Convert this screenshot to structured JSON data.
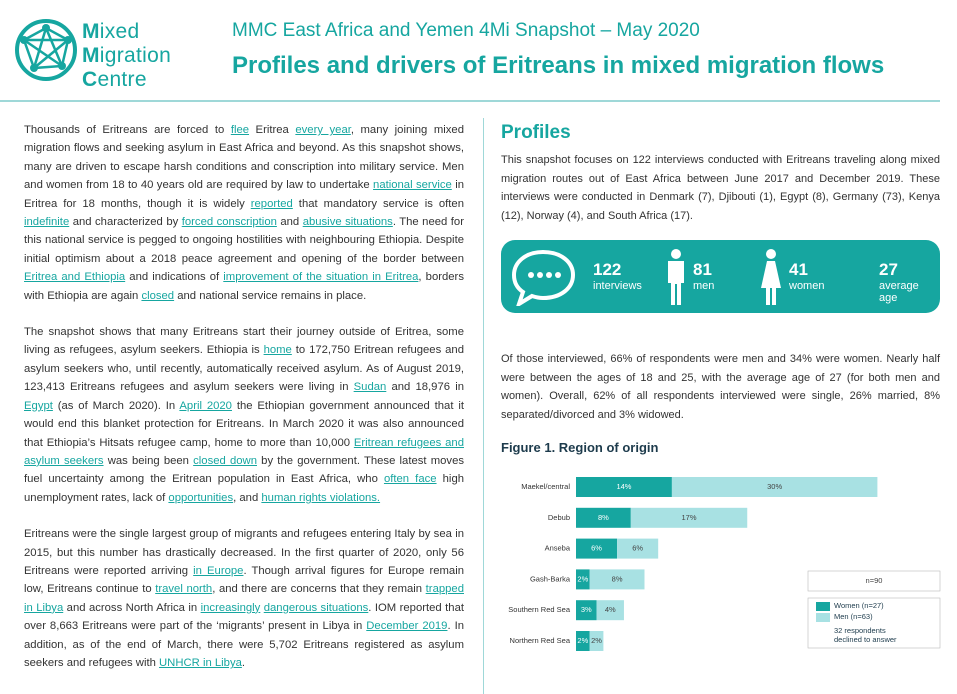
{
  "logo": {
    "lines": [
      "Mixed",
      "Migration",
      "Centre"
    ]
  },
  "header": {
    "subtitle": "MMC East Africa and Yemen 4Mi Snapshot – May 2020",
    "title": "Profiles and drivers of Eritreans in mixed migration flows"
  },
  "left": {
    "paragraphs": [
      [
        "Thousands of Eritreans are forced to ",
        {
          "text": "flee",
          "link": true
        },
        " Eritrea ",
        {
          "text": "every year",
          "link": true
        },
        ", many joining mixed migration flows and seeking asylum in East Africa and beyond. As this snapshot shows, many are driven to escape harsh conditions and conscription into military service. Men and women from 18 to 40 years old are required by law to undertake ",
        {
          "text": "national service",
          "link": true
        },
        " in Eritrea for 18 months, though it is widely ",
        {
          "text": "reported",
          "link": true
        },
        " that mandatory service is often ",
        {
          "text": "indefinite",
          "link": true
        },
        " and characterized by ",
        {
          "text": "forced conscription",
          "link": true
        },
        " and ",
        {
          "text": "abusive situations",
          "link": true
        },
        ". The need for this national service is pegged to ongoing hostilities with neighbouring Ethiopia. Despite initial optimism about a 2018 peace agreement and opening of the border between ",
        {
          "text": "Eritrea and Ethiopia",
          "link": true
        },
        " and indications of ",
        {
          "text": "improvement of the situation in Eritrea",
          "link": true
        },
        ", borders with Ethiopia are again ",
        {
          "text": "closed",
          "link": true
        },
        " and national service remains in place."
      ],
      [
        "The snapshot shows that many Eritreans start their journey outside of Eritrea, some living as refugees, asylum seekers. Ethiopia is ",
        {
          "text": "home",
          "link": true
        },
        " to 172,750 Eritrean refugees and asylum seekers who, until recently, automatically received asylum. As of August 2019, 123,413 Eritreans refugees and asylum seekers were living in ",
        {
          "text": "Sudan",
          "link": true
        },
        " and 18,976 in ",
        {
          "text": "Egypt",
          "link": true
        },
        " (as of March 2020). In ",
        {
          "text": "April 2020",
          "link": true
        },
        " the Ethiopian government announced that it would end this blanket protection for Eritreans. In March 2020 it was also announced that Ethiopia’s Hitsats refugee camp, home to more than 10,000 ",
        {
          "text": "Eritrean refugees and asylum seekers",
          "link": true
        },
        " was being been ",
        {
          "text": "closed down",
          "link": true
        },
        " by the government. These latest moves fuel uncertainty among the Eritrean population in East Africa, who ",
        {
          "text": "often face",
          "link": true
        },
        " high unemployment rates, lack of ",
        {
          "text": "opportunities",
          "link": true
        },
        ", and ",
        {
          "text": "human rights violations.",
          "link": true
        }
      ],
      [
        "Eritreans were the single largest group of migrants and refugees entering Italy by sea in 2015, but this number has drastically decreased. In the first quarter of 2020, only 56 Eritreans were reported arriving ",
        {
          "text": "in Europe",
          "link": true
        },
        ". Though arrival figures for Europe remain low, Eritreans continue to ",
        {
          "text": "travel north",
          "link": true
        },
        ", and there are concerns that they remain ",
        {
          "text": "trapped in Libya",
          "link": true
        },
        " and across North Africa in ",
        {
          "text": "increasingly",
          "link": true
        },
        " ",
        {
          "text": "dangerous situations",
          "link": true
        },
        ". IOM reported that over 8,663 Eritreans were part of the ‘migrants’ present in Libya in ",
        {
          "text": "December 2019",
          "link": true
        },
        ". In addition, as of the end of March, there were 5,702 Eritreans registered as asylum seekers and refugees with ",
        {
          "text": "UNHCR in Libya",
          "link": true
        },
        "."
      ]
    ]
  },
  "right": {
    "heading": "Profiles",
    "intro": "This snapshot focuses on 122 interviews conducted with Eritreans traveling along mixed migration routes out of East Africa between June 2017 and December 2019. These interviews were conducted in Denmark (7), Djibouti (1), Egypt (8), Germany (73), Kenya (12), Norway (4), and South Africa (17).",
    "stats": [
      {
        "value": 122,
        "label": "interviews"
      },
      {
        "value": 81,
        "label": "men"
      },
      {
        "value": 41,
        "label": "women"
      },
      {
        "value": 27,
        "label": "average age"
      }
    ],
    "summary": "Of those interviewed, 66% of respondents were men and 34% were women. Nearly half were between the ages of 18 and 25, with the average age of 27 (for both men and women). Overall, 62% of all respondents interviewed were single, 26% married, 8% separated/divorced and 3% widowed."
  },
  "chart_data": {
    "type": "stacked-bar-horizontal",
    "title": "Figure 1. Region of origin",
    "categories": [
      "Maekel/central",
      "Debub",
      "Anseba",
      "Gash-Barka",
      "Southern Red Sea",
      "Northern Red Sea"
    ],
    "series": [
      {
        "name": "Women (n=27)",
        "color": "#16a6a0",
        "values": [
          14,
          8,
          6,
          2,
          3,
          2
        ],
        "value_labels": [
          "14%",
          "8%",
          "6%",
          "2%",
          "3%",
          "2%"
        ]
      },
      {
        "name": "Men (n=63)",
        "color": "#a8e1e3",
        "values": [
          30,
          17,
          6,
          8,
          4,
          2
        ],
        "value_labels": [
          "30%",
          "17%",
          "6%",
          "8%",
          "4%",
          "2%"
        ]
      }
    ],
    "total_label": "n=90",
    "note": "32 respondents declined to answer"
  }
}
